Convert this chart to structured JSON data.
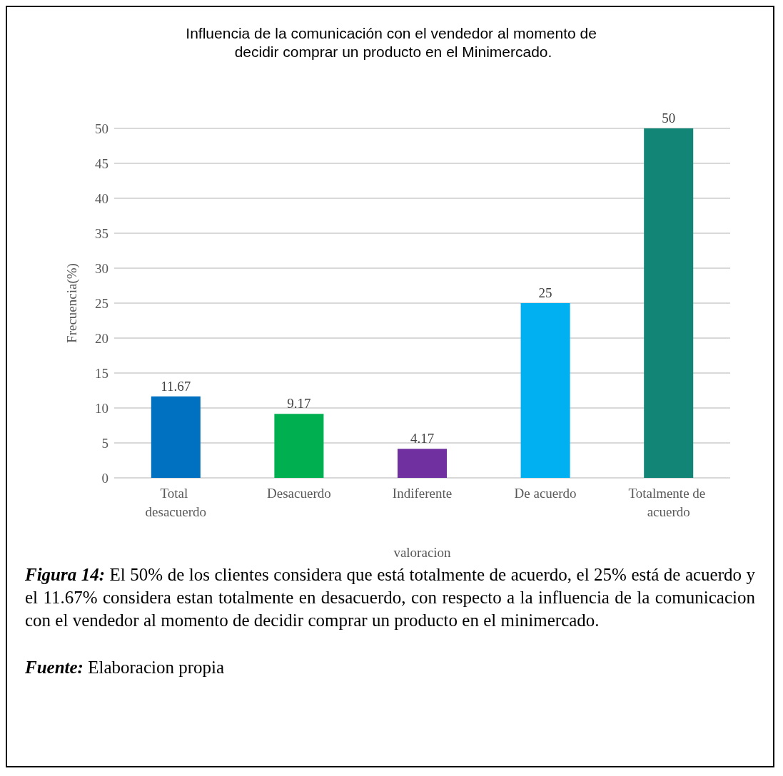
{
  "chart_data": {
    "type": "bar",
    "title": "Influencia de la comunicación con el vendedor al momento de decidir comprar un producto en el Minimercado.",
    "xlabel": "valoracion",
    "ylabel": "Frecuencia(%)",
    "categories": [
      "Total desacuerdo",
      "Desacuerdo",
      "Indiferente",
      "De acuerdo",
      "Totalmente de acuerdo"
    ],
    "values": [
      11.67,
      9.17,
      4.17,
      25,
      50
    ],
    "colors": [
      "#0070c0",
      "#00b050",
      "#7030a0",
      "#00b0f0",
      "#138577"
    ],
    "ylim": [
      0,
      50
    ],
    "yticks": [
      0,
      5,
      10,
      15,
      20,
      25,
      30,
      35,
      40,
      45,
      50
    ],
    "grid": "y",
    "data_labels": true,
    "annotations": [
      "Figura 14: El 50% de los clientes considera que está totalmente de acuerdo, el 25% está de acuerdo y el 11.67% considera estan totalmente en desacuerdo, con respecto a la influencia de la comunicacion  con el vendedor al momento de decidir comprar un producto en el minimercado.",
      "Fuente: Elaboracion propia"
    ]
  }
}
